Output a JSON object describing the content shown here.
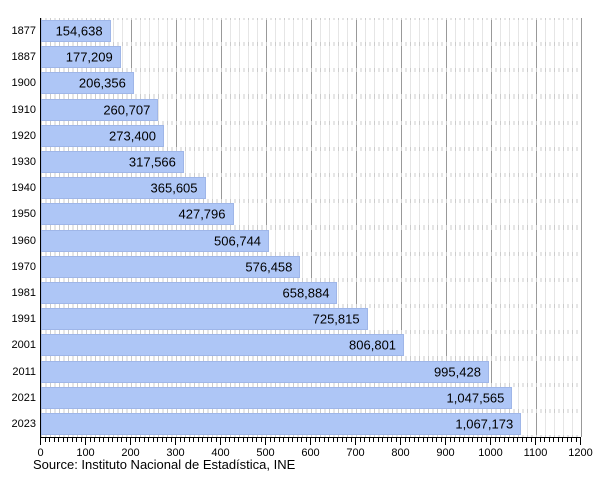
{
  "chart_data": {
    "type": "bar",
    "orientation": "horizontal",
    "title": "",
    "categories": [
      "1877",
      "1887",
      "1900",
      "1910",
      "1920",
      "1930",
      "1940",
      "1950",
      "1960",
      "1970",
      "1981",
      "1991",
      "2001",
      "2011",
      "2021",
      "2023"
    ],
    "values": [
      154638,
      177209,
      206356,
      260707,
      273400,
      317566,
      365605,
      427796,
      506744,
      576458,
      658884,
      725815,
      806801,
      995428,
      1047565,
      1067173
    ],
    "value_labels": [
      "154,638",
      "177,209",
      "206,356",
      "260,707",
      "273,400",
      "317,566",
      "365,605",
      "427,796",
      "506,744",
      "576,458",
      "658,884",
      "725,815",
      "806,801",
      "995,428",
      "1,047,565",
      "1,067,173"
    ],
    "x_axis": {
      "min": 0,
      "max": 1200,
      "major_tick_interval": 100,
      "minor_tick_interval": 10,
      "tick_labels": [
        "0",
        "100",
        "200",
        "300",
        "400",
        "500",
        "600",
        "700",
        "800",
        "900",
        "1000",
        "1100",
        "1200"
      ]
    },
    "grid": "on",
    "legend": "none",
    "source": "Source: Instituto Nacional de Estadística, INE",
    "colors": {
      "bar_fill": "#aec6f6",
      "bar_border": "#9fb6e8",
      "major_grid": "#999999",
      "minor_grid": "#e6e6e6",
      "row_stub_grid": "#cccccc",
      "axis": "#000000",
      "text": "#000000",
      "background": "#ffffff"
    }
  }
}
